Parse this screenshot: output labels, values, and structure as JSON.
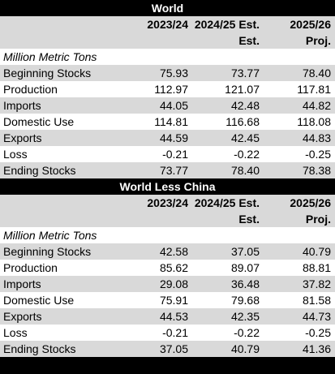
{
  "tables": [
    {
      "title": "World",
      "header_line1": [
        "2023/24",
        "2024/25  Est.",
        "2025/26"
      ],
      "header_line2": [
        "",
        "Est.",
        "Proj."
      ],
      "units": "Million Metric Tons",
      "rows": [
        {
          "label": "Beginning Stocks",
          "v1": "75.93",
          "v2": "73.77",
          "v3": "78.40"
        },
        {
          "label": "Production",
          "v1": "112.97",
          "v2": "121.07",
          "v3": "117.81"
        },
        {
          "label": "Imports",
          "v1": "44.05",
          "v2": "42.48",
          "v3": "44.82"
        },
        {
          "label": "Domestic Use",
          "v1": "114.81",
          "v2": "116.68",
          "v3": "118.08"
        },
        {
          "label": "Exports",
          "v1": "44.59",
          "v2": "42.45",
          "v3": "44.83"
        },
        {
          "label": "Loss",
          "v1": "-0.21",
          "v2": "-0.22",
          "v3": "-0.25"
        },
        {
          "label": "Ending Stocks",
          "v1": "73.77",
          "v2": "78.40",
          "v3": "78.38"
        }
      ]
    },
    {
      "title": "World Less China",
      "header_line1": [
        "2023/24",
        "2024/25  Est.",
        "2025/26"
      ],
      "header_line2": [
        "",
        "Est.",
        "Proj."
      ],
      "units": "Million Metric Tons",
      "rows": [
        {
          "label": "Beginning Stocks",
          "v1": "42.58",
          "v2": "37.05",
          "v3": "40.79"
        },
        {
          "label": "Production",
          "v1": "85.62",
          "v2": "89.07",
          "v3": "88.81"
        },
        {
          "label": "Imports",
          "v1": "29.08",
          "v2": "36.48",
          "v3": "37.82"
        },
        {
          "label": "Domestic Use",
          "v1": "75.91",
          "v2": "79.68",
          "v3": "81.58"
        },
        {
          "label": "Exports",
          "v1": "44.53",
          "v2": "42.35",
          "v3": "44.73"
        },
        {
          "label": "Loss",
          "v1": "-0.21",
          "v2": "-0.22",
          "v3": "-0.25"
        },
        {
          "label": "Ending Stocks",
          "v1": "37.05",
          "v2": "40.79",
          "v3": "41.36"
        }
      ]
    }
  ]
}
